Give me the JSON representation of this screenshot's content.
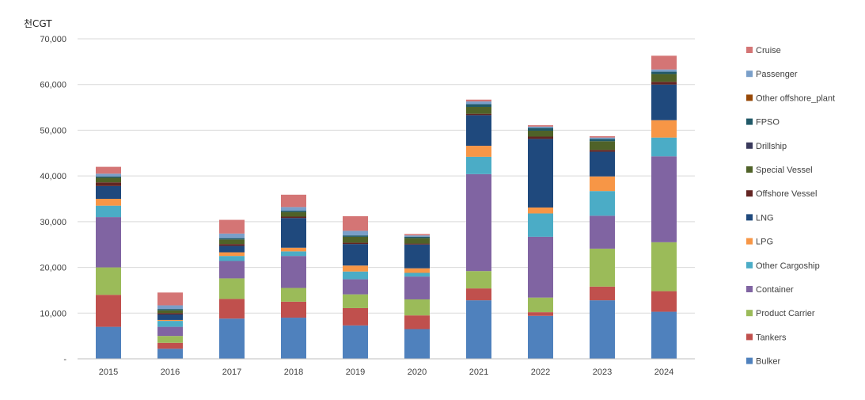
{
  "chart_data": {
    "type": "bar",
    "stacked": true,
    "unit_label": "천CGT",
    "ylim": [
      0,
      70000
    ],
    "y_ticks": [
      "-",
      "10,000",
      "20,000",
      "30,000",
      "40,000",
      "50,000",
      "60,000",
      "70,000"
    ],
    "grid": true,
    "legend_position": "right",
    "categories": [
      "2015",
      "2016",
      "2017",
      "2018",
      "2019",
      "2020",
      "2021",
      "2022",
      "2023",
      "2024"
    ],
    "series": [
      {
        "name": "Bulker",
        "color": "#4f81bd",
        "values": [
          7000,
          2200,
          8800,
          9000,
          7300,
          6500,
          12800,
          9400,
          12800,
          10300
        ]
      },
      {
        "name": "Tankers",
        "color": "#c0504d",
        "values": [
          7000,
          1300,
          4300,
          3500,
          3800,
          3000,
          2600,
          800,
          3000,
          4500
        ]
      },
      {
        "name": "Product Carrier",
        "color": "#9bbb59",
        "values": [
          6000,
          1500,
          4500,
          3000,
          3000,
          3500,
          3800,
          3200,
          8300,
          10700
        ]
      },
      {
        "name": "Container",
        "color": "#8064a2",
        "values": [
          11000,
          2000,
          3800,
          7000,
          3300,
          5000,
          21200,
          13300,
          7200,
          18800
        ]
      },
      {
        "name": "Other Cargoship",
        "color": "#4bacc6",
        "values": [
          2500,
          1300,
          1100,
          1000,
          1700,
          800,
          3800,
          5100,
          5400,
          4100
        ]
      },
      {
        "name": "LPG",
        "color": "#f79646",
        "values": [
          1500,
          200,
          800,
          800,
          1300,
          1000,
          2400,
          1300,
          3200,
          3800
        ]
      },
      {
        "name": "LNG",
        "color": "#1f497d",
        "values": [
          2800,
          1200,
          1400,
          6500,
          4700,
          5200,
          6700,
          15000,
          5400,
          7800
        ]
      },
      {
        "name": "Offshore Vessel",
        "color": "#632523",
        "values": [
          800,
          300,
          400,
          300,
          300,
          200,
          300,
          500,
          400,
          600
        ]
      },
      {
        "name": "Special Vessel",
        "color": "#4f6228",
        "values": [
          1000,
          600,
          1000,
          1000,
          1300,
          1200,
          1500,
          1300,
          1900,
          1700
        ]
      },
      {
        "name": "Drillship",
        "color": "#3a3a5c",
        "values": [
          0,
          0,
          0,
          0,
          0,
          0,
          0,
          0,
          0,
          0
        ]
      },
      {
        "name": "FPSO",
        "color": "#215968",
        "values": [
          300,
          300,
          300,
          300,
          300,
          300,
          600,
          600,
          500,
          500
        ]
      },
      {
        "name": "Other offshore_plant",
        "color": "#974806",
        "values": [
          0,
          0,
          0,
          0,
          0,
          0,
          0,
          0,
          0,
          0
        ]
      },
      {
        "name": "Passenger",
        "color": "#7a9fc9",
        "values": [
          600,
          800,
          1000,
          800,
          1000,
          300,
          600,
          300,
          300,
          500
        ]
      },
      {
        "name": "Cruise",
        "color": "#d47575",
        "values": [
          1500,
          2800,
          3000,
          2700,
          3200,
          300,
          400,
          300,
          300,
          3000
        ]
      }
    ]
  }
}
